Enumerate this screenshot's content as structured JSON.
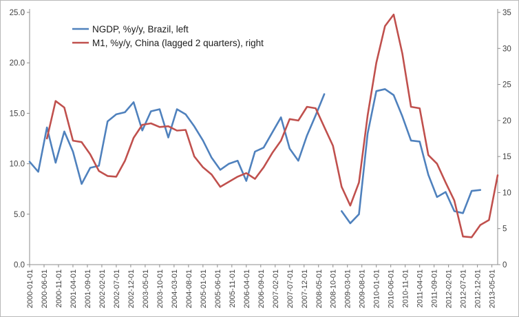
{
  "chart_data": {
    "type": "line",
    "title": "",
    "x": [
      "2000-01-01",
      "2000-04-01",
      "2000-07-01",
      "2000-10-01",
      "2001-01-01",
      "2001-04-01",
      "2001-07-01",
      "2001-10-01",
      "2002-01-01",
      "2002-04-01",
      "2002-07-01",
      "2002-10-01",
      "2003-01-01",
      "2003-04-01",
      "2003-07-01",
      "2003-10-01",
      "2004-01-01",
      "2004-04-01",
      "2004-07-01",
      "2004-10-01",
      "2005-01-01",
      "2005-04-01",
      "2005-07-01",
      "2005-10-01",
      "2006-01-01",
      "2006-04-01",
      "2006-07-01",
      "2006-10-01",
      "2007-01-01",
      "2007-04-01",
      "2007-07-01",
      "2007-10-01",
      "2008-01-01",
      "2008-04-01",
      "2008-07-01",
      "2008-10-01",
      "2009-01-01",
      "2009-04-01",
      "2009-07-01",
      "2009-10-01",
      "2010-01-01",
      "2010-04-01",
      "2010-07-01",
      "2010-10-01",
      "2011-01-01",
      "2011-04-01",
      "2011-07-01",
      "2011-10-01",
      "2012-01-01",
      "2012-04-01",
      "2012-07-01",
      "2012-10-01",
      "2013-01-01",
      "2013-04-01",
      "2013-07-01"
    ],
    "x_tick_labels": [
      "2000-01-01",
      "2000-06-01",
      "2000-11-01",
      "2001-04-01",
      "2001-09-01",
      "2002-02-01",
      "2002-07-01",
      "2002-12-01",
      "2003-05-01",
      "2003-10-01",
      "2004-03-01",
      "2004-08-01",
      "2005-01-01",
      "2005-06-01",
      "2005-11-01",
      "2006-04-01",
      "2006-09-01",
      "2007-02-01",
      "2007-07-01",
      "2007-12-01",
      "2008-05-01",
      "2008-10-01",
      "2009-03-01",
      "2009-08-01",
      "2010-01-01",
      "2010-06-01",
      "2010-11-01",
      "2011-04-01",
      "2011-09-01",
      "2012-02-01",
      "2012-07-01",
      "2012-12-01",
      "2013-05-01"
    ],
    "series": [
      {
        "name": "NGDP, %y/y, Brazil, left",
        "axis": "left",
        "color": "#4f81bd",
        "values": [
          10.2,
          9.2,
          13.6,
          10.1,
          13.2,
          11.2,
          8.0,
          9.6,
          9.8,
          14.2,
          14.9,
          15.1,
          16.1,
          13.3,
          15.2,
          15.4,
          12.6,
          15.4,
          14.9,
          13.7,
          12.3,
          10.6,
          9.4,
          10.0,
          10.3,
          8.3,
          11.2,
          11.6,
          13.1,
          14.6,
          11.5,
          10.3,
          12.8,
          14.8,
          16.9,
          null,
          5.3,
          4.1,
          5.0,
          13.0,
          17.2,
          17.4,
          16.8,
          14.7,
          12.3,
          12.2,
          8.9,
          6.7,
          7.2,
          5.3,
          5.1,
          7.3,
          7.4,
          null,
          null
        ]
      },
      {
        "name": "M1, %y/y, China (lagged 2 quarters), right",
        "axis": "right",
        "color": "#c0504d",
        "values": [
          null,
          null,
          17.5,
          22.7,
          21.8,
          17.2,
          17.0,
          15.3,
          13.0,
          12.3,
          12.2,
          14.4,
          17.6,
          19.4,
          19.6,
          19.1,
          19.2,
          18.6,
          18.7,
          15.0,
          13.5,
          12.5,
          10.8,
          11.5,
          12.2,
          12.7,
          11.9,
          13.5,
          15.5,
          17.2,
          20.2,
          20.0,
          21.9,
          21.7,
          19.1,
          16.5,
          10.8,
          8.2,
          11.4,
          20.7,
          28.0,
          33.1,
          34.7,
          29.3,
          21.9,
          21.7,
          15.2,
          14.0,
          11.4,
          8.9,
          3.9,
          3.8,
          5.5,
          6.2,
          12.4
        ]
      }
    ],
    "y_left": {
      "min": 0,
      "max": 25,
      "ticks": [
        "0.0",
        "5.0",
        "10.0",
        "15.0",
        "20.0",
        "25.0"
      ]
    },
    "y_right": {
      "min": 0,
      "max": 35,
      "ticks": [
        "0",
        "5",
        "10",
        "15",
        "20",
        "25",
        "30",
        "35"
      ]
    },
    "legend_position": "top-left",
    "grid": false
  }
}
